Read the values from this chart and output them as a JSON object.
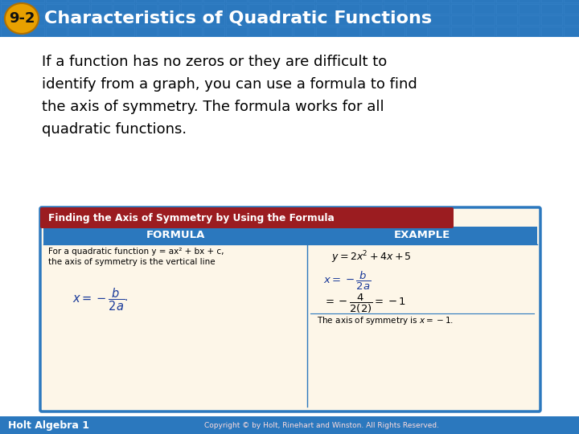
{
  "title_number": "9-2",
  "title_text": "Characteristics of Quadratic Functions",
  "title_bg_color": "#2b78be",
  "title_number_bg": "#f0a800",
  "body_bg_color": "#e8f0f8",
  "paragraph_text_lines": [
    "If a function has no zeros or they are difficult to",
    "identify from a graph, you can use a formula to find",
    "the axis of symmetry. The formula works for all",
    "quadratic functions."
  ],
  "box_title": "Finding the Axis of Symmetry by Using the Formula",
  "box_title_bg": "#9b1c20",
  "box_border_color": "#2b78be",
  "box_inner_bg": "#fdf6e8",
  "table_header_bg": "#2b78be",
  "col1_header": "FORMULA",
  "col2_header": "EXAMPLE",
  "footer_text": "Holt Algebra 1",
  "footer_right": "Copyright © by Holt, Rinehart and Winston. All Rights Reserved.",
  "footer_bg": "#2b78be",
  "grid_color": "#4a95d8"
}
